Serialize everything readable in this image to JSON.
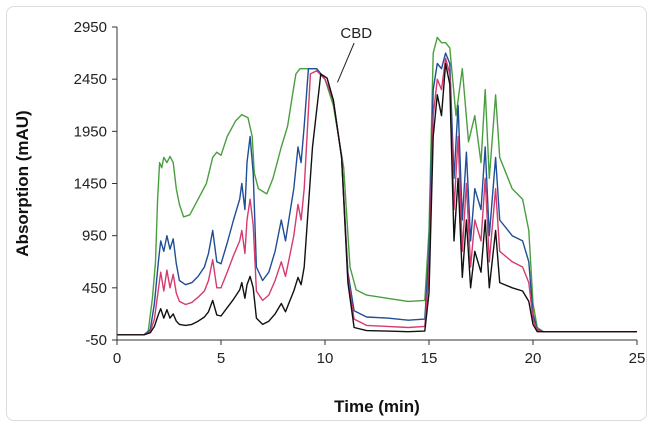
{
  "chart_data": {
    "type": "line",
    "title": "",
    "xlabel": "Time (min)",
    "ylabel": "Absorption (mAU)",
    "xlim": [
      0,
      25
    ],
    "ylim": [
      -50,
      2950
    ],
    "x_ticks": [
      0,
      5,
      10,
      15,
      20,
      25
    ],
    "y_ticks": [
      -50,
      450,
      950,
      1450,
      1950,
      2450,
      2950
    ],
    "grid": false,
    "legend": "none",
    "annotations": [
      {
        "text": "CBD",
        "x": 10.6,
        "y": 2420
      }
    ],
    "series": [
      {
        "color": "#4a9e3f",
        "points": [
          [
            0,
            0
          ],
          [
            1.3,
            0
          ],
          [
            1.5,
            30
          ],
          [
            1.7,
            350
          ],
          [
            1.85,
            700
          ],
          [
            1.95,
            1300
          ],
          [
            2.05,
            1650
          ],
          [
            2.15,
            1600
          ],
          [
            2.25,
            1700
          ],
          [
            2.4,
            1650
          ],
          [
            2.55,
            1710
          ],
          [
            2.7,
            1650
          ],
          [
            2.85,
            1400
          ],
          [
            3.0,
            1250
          ],
          [
            3.2,
            1130
          ],
          [
            3.5,
            1150
          ],
          [
            3.9,
            1300
          ],
          [
            4.3,
            1450
          ],
          [
            4.6,
            1700
          ],
          [
            4.8,
            1750
          ],
          [
            5.0,
            1720
          ],
          [
            5.3,
            1900
          ],
          [
            5.7,
            2050
          ],
          [
            6.0,
            2110
          ],
          [
            6.3,
            2080
          ],
          [
            6.5,
            1900
          ],
          [
            6.6,
            1550
          ],
          [
            6.8,
            1400
          ],
          [
            7.2,
            1350
          ],
          [
            7.5,
            1500
          ],
          [
            7.9,
            1800
          ],
          [
            8.2,
            2000
          ],
          [
            8.4,
            2250
          ],
          [
            8.6,
            2500
          ],
          [
            8.8,
            2550
          ],
          [
            9.6,
            2550
          ],
          [
            10.0,
            2450
          ],
          [
            10.4,
            2200
          ],
          [
            10.9,
            1600
          ],
          [
            11.2,
            650
          ],
          [
            11.5,
            430
          ],
          [
            12.0,
            380
          ],
          [
            13.0,
            350
          ],
          [
            14.0,
            320
          ],
          [
            14.8,
            330
          ],
          [
            15.0,
            1000
          ],
          [
            15.2,
            2700
          ],
          [
            15.4,
            2850
          ],
          [
            15.6,
            2800
          ],
          [
            15.8,
            2800
          ],
          [
            16.0,
            2750
          ],
          [
            16.3,
            2100
          ],
          [
            16.6,
            2550
          ],
          [
            16.9,
            1850
          ],
          [
            17.2,
            2100
          ],
          [
            17.5,
            1650
          ],
          [
            17.7,
            2350
          ],
          [
            17.9,
            1500
          ],
          [
            18.2,
            2300
          ],
          [
            18.4,
            1700
          ],
          [
            19.0,
            1400
          ],
          [
            19.5,
            1300
          ],
          [
            19.8,
            1000
          ],
          [
            20.0,
            300
          ],
          [
            20.2,
            70
          ],
          [
            20.5,
            30
          ],
          [
            25,
            30
          ]
        ]
      },
      {
        "color": "#1f4e96",
        "points": [
          [
            0,
            0
          ],
          [
            1.3,
            0
          ],
          [
            1.6,
            50
          ],
          [
            1.8,
            300
          ],
          [
            2.0,
            720
          ],
          [
            2.1,
            900
          ],
          [
            2.25,
            800
          ],
          [
            2.4,
            950
          ],
          [
            2.55,
            820
          ],
          [
            2.7,
            920
          ],
          [
            2.85,
            680
          ],
          [
            3.0,
            520
          ],
          [
            3.3,
            480
          ],
          [
            3.6,
            500
          ],
          [
            3.9,
            560
          ],
          [
            4.2,
            650
          ],
          [
            4.4,
            780
          ],
          [
            4.6,
            1000
          ],
          [
            4.8,
            700
          ],
          [
            5.0,
            680
          ],
          [
            5.3,
            880
          ],
          [
            5.6,
            1100
          ],
          [
            5.9,
            1300
          ],
          [
            6.0,
            1450
          ],
          [
            6.15,
            1200
          ],
          [
            6.25,
            1650
          ],
          [
            6.4,
            1900
          ],
          [
            6.55,
            1550
          ],
          [
            6.7,
            650
          ],
          [
            7.0,
            520
          ],
          [
            7.3,
            600
          ],
          [
            7.6,
            800
          ],
          [
            7.9,
            1100
          ],
          [
            8.1,
            900
          ],
          [
            8.3,
            1150
          ],
          [
            8.5,
            1400
          ],
          [
            8.7,
            1800
          ],
          [
            8.85,
            1650
          ],
          [
            9.0,
            2000
          ],
          [
            9.2,
            2550
          ],
          [
            9.6,
            2550
          ],
          [
            10.0,
            2450
          ],
          [
            10.4,
            2250
          ],
          [
            10.8,
            1700
          ],
          [
            11.1,
            600
          ],
          [
            11.4,
            230
          ],
          [
            12.0,
            170
          ],
          [
            13.0,
            160
          ],
          [
            14.0,
            140
          ],
          [
            14.8,
            150
          ],
          [
            15.0,
            800
          ],
          [
            15.2,
            2350
          ],
          [
            15.4,
            2600
          ],
          [
            15.6,
            2550
          ],
          [
            15.8,
            2700
          ],
          [
            16.0,
            2600
          ],
          [
            16.2,
            1500
          ],
          [
            16.4,
            2200
          ],
          [
            16.6,
            1100
          ],
          [
            16.8,
            1750
          ],
          [
            17.0,
            900
          ],
          [
            17.2,
            1400
          ],
          [
            17.5,
            1200
          ],
          [
            17.7,
            1800
          ],
          [
            17.9,
            950
          ],
          [
            18.2,
            1700
          ],
          [
            18.4,
            1100
          ],
          [
            19.0,
            950
          ],
          [
            19.5,
            900
          ],
          [
            19.8,
            700
          ],
          [
            20.0,
            200
          ],
          [
            20.2,
            50
          ],
          [
            20.5,
            30
          ],
          [
            25,
            30
          ]
        ]
      },
      {
        "color": "#d63a6e",
        "points": [
          [
            0,
            0
          ],
          [
            1.3,
            0
          ],
          [
            1.6,
            30
          ],
          [
            1.8,
            150
          ],
          [
            2.0,
            450
          ],
          [
            2.1,
            600
          ],
          [
            2.25,
            420
          ],
          [
            2.4,
            620
          ],
          [
            2.55,
            450
          ],
          [
            2.7,
            580
          ],
          [
            2.85,
            400
          ],
          [
            3.0,
            320
          ],
          [
            3.3,
            290
          ],
          [
            3.6,
            310
          ],
          [
            3.9,
            360
          ],
          [
            4.2,
            420
          ],
          [
            4.4,
            520
          ],
          [
            4.6,
            720
          ],
          [
            4.8,
            450
          ],
          [
            5.0,
            450
          ],
          [
            5.3,
            600
          ],
          [
            5.6,
            760
          ],
          [
            5.9,
            900
          ],
          [
            6.0,
            1000
          ],
          [
            6.15,
            780
          ],
          [
            6.25,
            1100
          ],
          [
            6.4,
            1300
          ],
          [
            6.55,
            1050
          ],
          [
            6.7,
            420
          ],
          [
            7.0,
            330
          ],
          [
            7.3,
            380
          ],
          [
            7.6,
            520
          ],
          [
            7.9,
            700
          ],
          [
            8.1,
            560
          ],
          [
            8.3,
            750
          ],
          [
            8.5,
            950
          ],
          [
            8.7,
            1250
          ],
          [
            8.85,
            1100
          ],
          [
            9.0,
            1400
          ],
          [
            9.3,
            2500
          ],
          [
            9.6,
            2530
          ],
          [
            10.0,
            2450
          ],
          [
            10.4,
            2250
          ],
          [
            10.8,
            1700
          ],
          [
            11.1,
            550
          ],
          [
            11.4,
            150
          ],
          [
            12.0,
            90
          ],
          [
            13.0,
            80
          ],
          [
            14.0,
            70
          ],
          [
            14.8,
            80
          ],
          [
            15.0,
            600
          ],
          [
            15.2,
            2100
          ],
          [
            15.4,
            2450
          ],
          [
            15.6,
            2350
          ],
          [
            15.8,
            2650
          ],
          [
            16.0,
            2500
          ],
          [
            16.2,
            1200
          ],
          [
            16.4,
            1900
          ],
          [
            16.6,
            800
          ],
          [
            16.8,
            1450
          ],
          [
            17.0,
            650
          ],
          [
            17.2,
            1100
          ],
          [
            17.5,
            900
          ],
          [
            17.7,
            1500
          ],
          [
            17.9,
            700
          ],
          [
            18.2,
            1400
          ],
          [
            18.4,
            800
          ],
          [
            19.0,
            700
          ],
          [
            19.5,
            650
          ],
          [
            19.8,
            500
          ],
          [
            20.0,
            150
          ],
          [
            20.2,
            40
          ],
          [
            20.5,
            30
          ],
          [
            25,
            30
          ]
        ]
      },
      {
        "color": "#111111",
        "points": [
          [
            0,
            0
          ],
          [
            1.3,
            0
          ],
          [
            1.6,
            20
          ],
          [
            1.8,
            80
          ],
          [
            2.0,
            200
          ],
          [
            2.1,
            250
          ],
          [
            2.25,
            160
          ],
          [
            2.4,
            240
          ],
          [
            2.55,
            160
          ],
          [
            2.7,
            200
          ],
          [
            2.85,
            130
          ],
          [
            3.0,
            100
          ],
          [
            3.3,
            90
          ],
          [
            3.6,
            100
          ],
          [
            3.9,
            130
          ],
          [
            4.2,
            170
          ],
          [
            4.4,
            220
          ],
          [
            4.6,
            330
          ],
          [
            4.8,
            190
          ],
          [
            5.0,
            180
          ],
          [
            5.3,
            260
          ],
          [
            5.6,
            340
          ],
          [
            5.9,
            430
          ],
          [
            6.0,
            500
          ],
          [
            6.15,
            350
          ],
          [
            6.25,
            480
          ],
          [
            6.4,
            560
          ],
          [
            6.55,
            450
          ],
          [
            6.7,
            160
          ],
          [
            7.0,
            100
          ],
          [
            7.3,
            130
          ],
          [
            7.6,
            200
          ],
          [
            7.9,
            300
          ],
          [
            8.1,
            220
          ],
          [
            8.3,
            320
          ],
          [
            8.5,
            420
          ],
          [
            8.7,
            550
          ],
          [
            8.85,
            480
          ],
          [
            9.0,
            650
          ],
          [
            9.4,
            1800
          ],
          [
            9.8,
            2500
          ],
          [
            10.1,
            2460
          ],
          [
            10.4,
            2250
          ],
          [
            10.8,
            1700
          ],
          [
            11.1,
            500
          ],
          [
            11.4,
            70
          ],
          [
            12.0,
            40
          ],
          [
            13.0,
            35
          ],
          [
            14.0,
            30
          ],
          [
            14.8,
            35
          ],
          [
            15.0,
            400
          ],
          [
            15.2,
            1900
          ],
          [
            15.4,
            2300
          ],
          [
            15.6,
            2100
          ],
          [
            15.8,
            2600
          ],
          [
            16.0,
            2400
          ],
          [
            16.2,
            900
          ],
          [
            16.4,
            1500
          ],
          [
            16.6,
            550
          ],
          [
            16.8,
            1100
          ],
          [
            17.0,
            450
          ],
          [
            17.2,
            800
          ],
          [
            17.5,
            600
          ],
          [
            17.7,
            1100
          ],
          [
            17.9,
            450
          ],
          [
            18.2,
            1000
          ],
          [
            18.4,
            500
          ],
          [
            19.0,
            450
          ],
          [
            19.5,
            420
          ],
          [
            19.8,
            320
          ],
          [
            20.0,
            100
          ],
          [
            20.2,
            30
          ],
          [
            20.5,
            30
          ],
          [
            25,
            30
          ]
        ]
      }
    ]
  }
}
